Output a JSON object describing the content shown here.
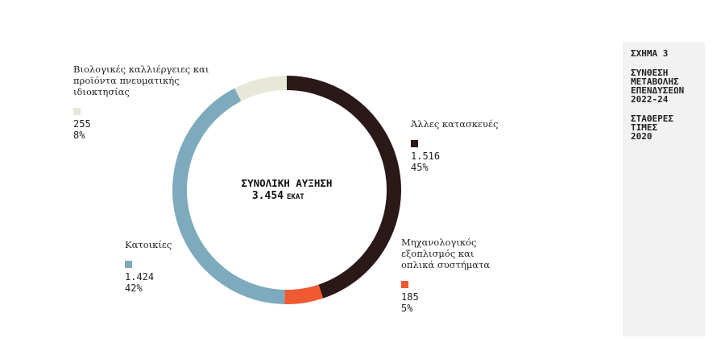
{
  "chart_data": {
    "type": "donut",
    "center_title": "ΣΥΝΟΛΙΚΗ ΑΥΞΗΣΗ",
    "center_value_label": "3.454",
    "center_unit": "ΕΚΑΤ",
    "categories": [
      [
        "Άλλες κατασκευές"
      ],
      [
        "Μηχανολογικός",
        "εξοπλισμός και",
        "οπλικά συστήματα"
      ],
      [
        "Κατοικίες"
      ],
      [
        "Βιολογικές καλλιέργειες και",
        "προϊόντα πνευματικής",
        "ιδιοκτησίας"
      ]
    ],
    "values": [
      1516,
      185,
      1424,
      255
    ],
    "value_labels": [
      "1.516",
      "185",
      "1.424",
      "255"
    ],
    "percents": [
      45,
      5,
      42,
      8
    ],
    "percent_labels": [
      "45%",
      "5%",
      "42%",
      "8%"
    ],
    "colors": [
      "#2b1818",
      "#f05a32",
      "#7eaabd",
      "#e8e8d8"
    ]
  },
  "sidebar": {
    "figure": "ΣΧΗΜΑ 3",
    "title_lines": [
      "ΣΥΝΘΕΣΗ",
      "ΜΕΤΑΒΟΛΗΣ",
      "ΕΠΕΝΔΥΣΕΩΝ",
      "2022-24"
    ],
    "subtitle_lines": [
      "ΣΤΑΘΕΡΕΣ",
      "ΤΙΜΕΣ",
      "2020"
    ]
  }
}
